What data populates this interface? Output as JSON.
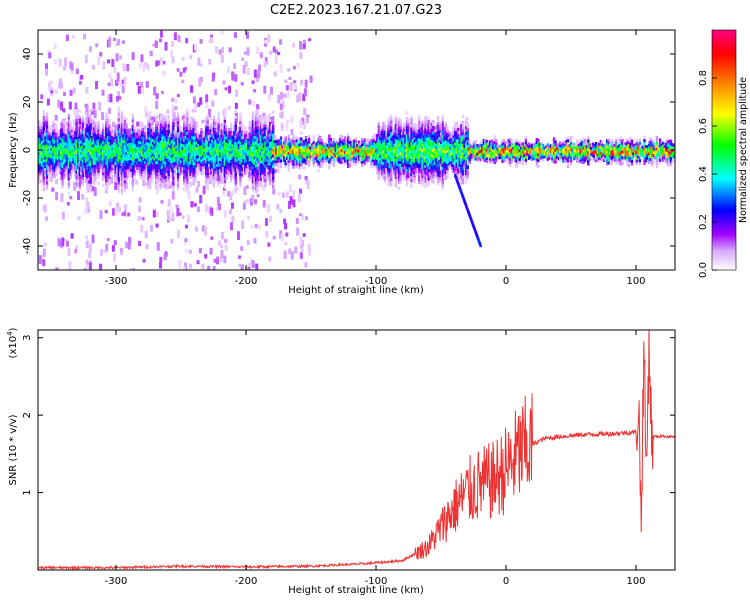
{
  "title": "C2E2.2023.167.21.07.G23",
  "chart_data": [
    {
      "type": "heatmap",
      "xlabel": "Height of straight line (km)",
      "ylabel": "Frequency (Hz)",
      "xlim": [
        -360,
        130
      ],
      "ylim": [
        -50,
        50
      ],
      "xticks": [
        -300,
        -200,
        -100,
        0,
        100
      ],
      "yticks": [
        -40,
        -20,
        0,
        20,
        40
      ],
      "colorbar": {
        "label": "Normalized spectral amplitude",
        "range": [
          0,
          1
        ],
        "ticks": [
          "0.0",
          "0.2",
          "0.4",
          "0.6",
          "0.8"
        ],
        "tick_values": [
          0,
          0.2,
          0.4,
          0.6,
          0.8
        ],
        "colormap": [
          "#ffffff",
          "#a000ff",
          "#0000ff",
          "#00ffff",
          "#00ff00",
          "#ffff00",
          "#ff8000",
          "#ff0000",
          "#ff0080"
        ]
      },
      "bands": [
        {
          "x_from": -360,
          "x_to": -180,
          "center_hz": 0,
          "halfwidth_hz": 8,
          "peak": 0.55,
          "background": "scattered"
        },
        {
          "x_from": -180,
          "x_to": -100,
          "center_hz": 0,
          "halfwidth_hz": 3,
          "peak": 0.85
        },
        {
          "x_from": -100,
          "x_to": -30,
          "center_hz": 0,
          "halfwidth_hz": 7,
          "peak": 0.6
        },
        {
          "x_from": -30,
          "x_to": 130,
          "center_hz": 0,
          "halfwidth_hz": 2.5,
          "peak": 0.9
        }
      ],
      "tail": {
        "x": [
          -40,
          -30,
          -20
        ],
        "y": [
          -10,
          -25,
          -40
        ]
      }
    },
    {
      "type": "line",
      "xlabel": "Height of straight line (km)",
      "ylabel": "SNR (10 * v/v)",
      "y_multiplier": "(x10",
      "y_multiplier_exp": "4",
      "y_multiplier_close": ")",
      "xlim": [
        -360,
        130
      ],
      "ylim": [
        0,
        3.1
      ],
      "xticks": [
        -300,
        -200,
        -100,
        0,
        100
      ],
      "yticks": [
        1,
        2,
        3
      ],
      "color": "#ee3333",
      "series": [
        {
          "x": [
            -360,
            -300,
            -250,
            -200,
            -150,
            -110,
            -80,
            -60,
            -50,
            -40,
            -30,
            -20,
            -10,
            0,
            10,
            20,
            30,
            40,
            60,
            80,
            100,
            102,
            104,
            106,
            108,
            110,
            112,
            120,
            130
          ],
          "y": [
            0.03,
            0.03,
            0.05,
            0.04,
            0.05,
            0.08,
            0.12,
            0.3,
            0.55,
            0.8,
            1.0,
            1.1,
            1.15,
            1.3,
            1.5,
            1.62,
            1.7,
            1.72,
            1.75,
            1.76,
            1.78,
            2.2,
            0.6,
            2.9,
            1.2,
            3.0,
            1.72,
            1.73,
            1.72
          ]
        }
      ]
    }
  ]
}
